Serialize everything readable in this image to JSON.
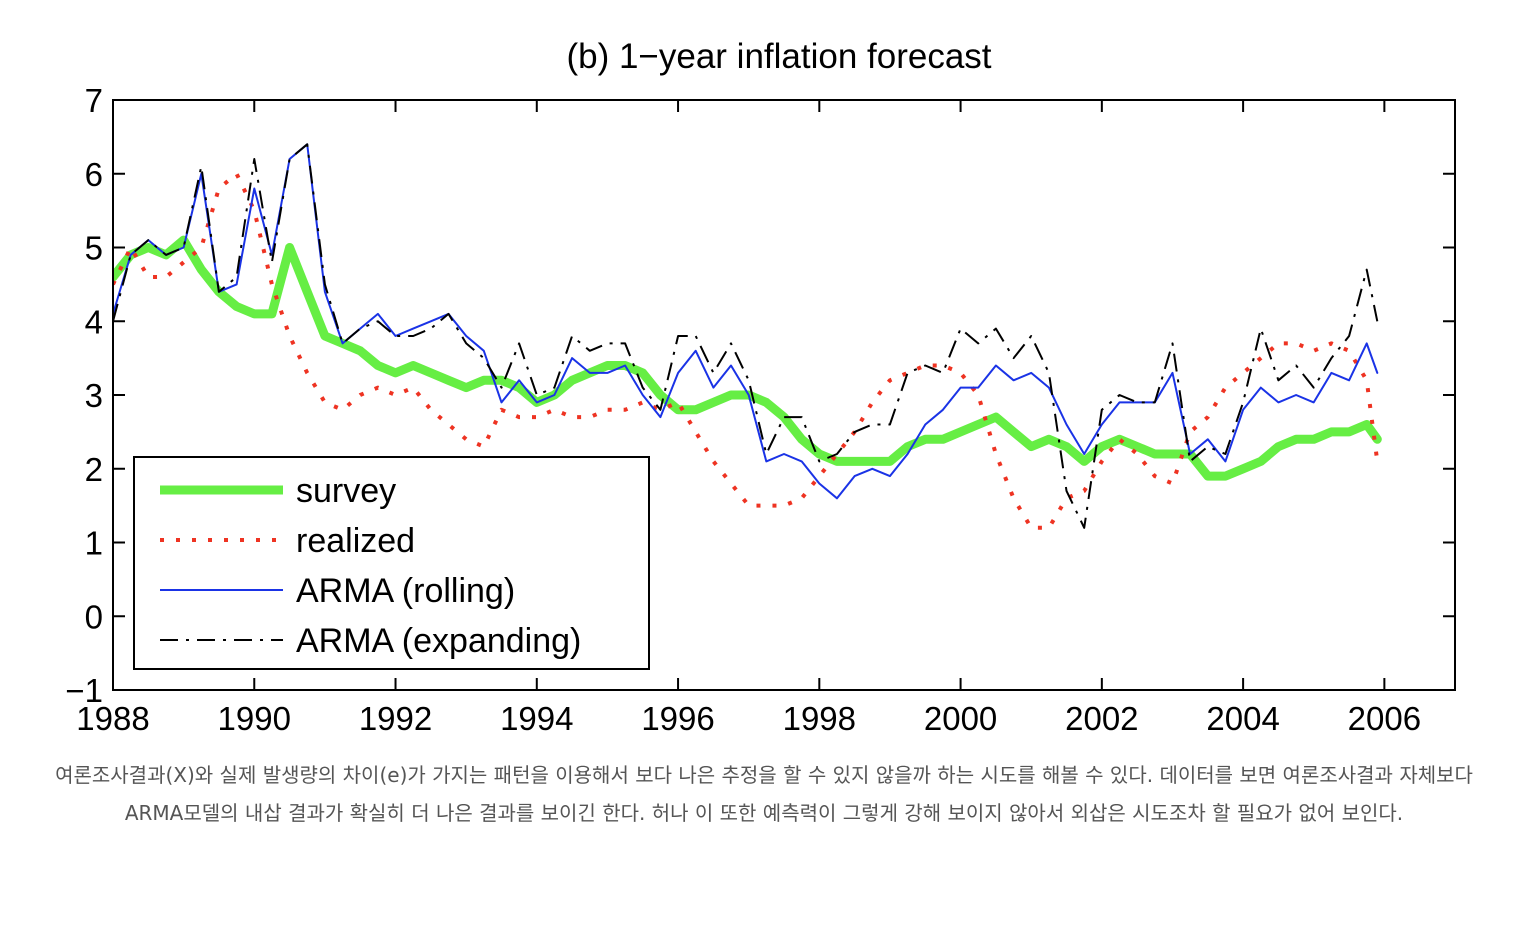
{
  "chart_data": {
    "type": "line",
    "title": "(b) 1−year inflation forecast",
    "xlabel": "",
    "ylabel": "",
    "xlim": [
      1988,
      2007
    ],
    "ylim": [
      -1,
      7
    ],
    "x_ticks": [
      1988,
      1990,
      1992,
      1994,
      1996,
      1998,
      2000,
      2002,
      2004,
      2006
    ],
    "x_tick_labels": [
      "1988",
      "1990",
      "1992",
      "1994",
      "1996",
      "1998",
      "2000",
      "2002",
      "2004",
      "2006"
    ],
    "y_ticks": [
      -1,
      0,
      1,
      2,
      3,
      4,
      5,
      6,
      7
    ],
    "y_tick_labels": [
      "−1",
      "0",
      "1",
      "2",
      "3",
      "4",
      "5",
      "6",
      "7"
    ],
    "grid": false,
    "legend_position": "bottom-left",
    "series": [
      {
        "name": "survey",
        "color": "#66ee44",
        "style": "solid-thick",
        "x": [
          1988.0,
          1988.25,
          1988.5,
          1988.75,
          1989.0,
          1989.25,
          1989.5,
          1989.75,
          1990.0,
          1990.25,
          1990.5,
          1990.75,
          1991.0,
          1991.25,
          1991.5,
          1991.75,
          1992.0,
          1992.25,
          1992.5,
          1992.75,
          1993.0,
          1993.25,
          1993.5,
          1993.75,
          1994.0,
          1994.25,
          1994.5,
          1994.75,
          1995.0,
          1995.25,
          1995.5,
          1995.75,
          1996.0,
          1996.25,
          1996.5,
          1996.75,
          1997.0,
          1997.25,
          1997.5,
          1997.75,
          1998.0,
          1998.25,
          1998.5,
          1998.75,
          1999.0,
          1999.25,
          1999.5,
          1999.75,
          2000.0,
          2000.25,
          2000.5,
          2000.75,
          2001.0,
          2001.25,
          2001.5,
          2001.75,
          2002.0,
          2002.25,
          2002.5,
          2002.75,
          2003.0,
          2003.25,
          2003.5,
          2003.75,
          2004.0,
          2004.25,
          2004.5,
          2004.75,
          2005.0,
          2005.25,
          2005.5,
          2005.75,
          2005.9
        ],
        "y": [
          4.6,
          4.9,
          5.0,
          4.9,
          5.1,
          4.7,
          4.4,
          4.2,
          4.1,
          4.1,
          5.0,
          4.4,
          3.8,
          3.7,
          3.6,
          3.4,
          3.3,
          3.4,
          3.3,
          3.2,
          3.1,
          3.2,
          3.2,
          3.1,
          2.9,
          3.0,
          3.2,
          3.3,
          3.4,
          3.4,
          3.3,
          3.0,
          2.8,
          2.8,
          2.9,
          3.0,
          3.0,
          2.9,
          2.7,
          2.4,
          2.2,
          2.1,
          2.1,
          2.1,
          2.1,
          2.3,
          2.4,
          2.4,
          2.5,
          2.6,
          2.7,
          2.5,
          2.3,
          2.4,
          2.3,
          2.1,
          2.3,
          2.4,
          2.3,
          2.2,
          2.2,
          2.2,
          1.9,
          1.9,
          2.0,
          2.1,
          2.3,
          2.4,
          2.4,
          2.5,
          2.5,
          2.6,
          2.4
        ]
      },
      {
        "name": "realized",
        "color": "#ee3322",
        "style": "dotted",
        "x": [
          1988.0,
          1988.25,
          1988.5,
          1988.75,
          1989.0,
          1989.25,
          1989.5,
          1989.75,
          1990.0,
          1990.25,
          1990.5,
          1990.75,
          1991.0,
          1991.25,
          1991.5,
          1991.75,
          1992.0,
          1992.25,
          1992.5,
          1992.75,
          1993.0,
          1993.25,
          1993.5,
          1993.75,
          1994.0,
          1994.25,
          1994.5,
          1994.75,
          1995.0,
          1995.25,
          1995.5,
          1995.75,
          1996.0,
          1996.25,
          1996.5,
          1996.75,
          1997.0,
          1997.25,
          1997.5,
          1997.75,
          1998.0,
          1998.25,
          1998.5,
          1998.75,
          1999.0,
          1999.25,
          1999.5,
          1999.75,
          2000.0,
          2000.25,
          2000.5,
          2000.75,
          2001.0,
          2001.25,
          2001.5,
          2001.75,
          2002.0,
          2002.25,
          2002.5,
          2002.75,
          2003.0,
          2003.25,
          2003.5,
          2003.75,
          2004.0,
          2004.25,
          2004.5,
          2004.75,
          2005.0,
          2005.25,
          2005.5,
          2005.75,
          2005.9
        ],
        "y": [
          4.5,
          5.0,
          4.6,
          4.6,
          4.8,
          5.0,
          5.8,
          6.0,
          5.5,
          4.5,
          3.8,
          3.3,
          2.9,
          2.8,
          3.0,
          3.1,
          3.0,
          3.1,
          2.8,
          2.6,
          2.4,
          2.3,
          2.8,
          2.7,
          2.7,
          2.8,
          2.7,
          2.7,
          2.8,
          2.8,
          2.9,
          2.8,
          2.9,
          2.5,
          2.1,
          1.8,
          1.5,
          1.5,
          1.5,
          1.6,
          1.9,
          2.2,
          2.5,
          2.9,
          3.2,
          3.3,
          3.4,
          3.4,
          3.3,
          3.0,
          2.2,
          1.6,
          1.2,
          1.2,
          1.6,
          1.7,
          2.1,
          2.4,
          2.2,
          1.9,
          1.8,
          2.5,
          2.7,
          3.1,
          3.3,
          3.5,
          3.7,
          3.7,
          3.6,
          3.7,
          3.6,
          3.2,
          2.1
        ]
      },
      {
        "name": "ARMA (rolling)",
        "color": "#1a33e6",
        "style": "solid",
        "x": [
          1988.0,
          1988.25,
          1988.5,
          1988.75,
          1989.0,
          1989.25,
          1989.5,
          1989.75,
          1990.0,
          1990.25,
          1990.5,
          1990.75,
          1991.0,
          1991.25,
          1991.5,
          1991.75,
          1992.0,
          1992.25,
          1992.5,
          1992.75,
          1993.0,
          1993.25,
          1993.5,
          1993.75,
          1994.0,
          1994.25,
          1994.5,
          1994.75,
          1995.0,
          1995.25,
          1995.5,
          1995.75,
          1996.0,
          1996.25,
          1996.5,
          1996.75,
          1997.0,
          1997.25,
          1997.5,
          1997.75,
          1998.0,
          1998.25,
          1998.5,
          1998.75,
          1999.0,
          1999.25,
          1999.5,
          1999.75,
          2000.0,
          2000.25,
          2000.5,
          2000.75,
          2001.0,
          2001.25,
          2001.5,
          2001.75,
          2002.0,
          2002.25,
          2002.5,
          2002.75,
          2003.0,
          2003.25,
          2003.5,
          2003.75,
          2004.0,
          2004.25,
          2004.5,
          2004.75,
          2005.0,
          2005.25,
          2005.5,
          2005.75,
          2005.9
        ],
        "y": [
          4.1,
          4.9,
          5.1,
          4.9,
          5.0,
          6.0,
          4.4,
          4.5,
          5.8,
          4.9,
          6.2,
          6.4,
          4.4,
          3.7,
          3.9,
          4.1,
          3.8,
          3.9,
          4.0,
          4.1,
          3.8,
          3.6,
          2.9,
          3.2,
          2.9,
          3.0,
          3.5,
          3.3,
          3.3,
          3.4,
          3.0,
          2.7,
          3.3,
          3.6,
          3.1,
          3.4,
          3.0,
          2.1,
          2.2,
          2.1,
          1.8,
          1.6,
          1.9,
          2.0,
          1.9,
          2.2,
          2.6,
          2.8,
          3.1,
          3.1,
          3.4,
          3.2,
          3.3,
          3.1,
          2.6,
          2.2,
          2.6,
          2.9,
          2.9,
          2.9,
          3.3,
          2.2,
          2.4,
          2.1,
          2.8,
          3.1,
          2.9,
          3.0,
          2.9,
          3.3,
          3.2,
          3.7,
          3.3
        ]
      },
      {
        "name": "ARMA (expanding)",
        "color": "#000000",
        "style": "dash-dot",
        "x": [
          1988.0,
          1988.25,
          1988.5,
          1988.75,
          1989.0,
          1989.25,
          1989.5,
          1989.75,
          1990.0,
          1990.25,
          1990.5,
          1990.75,
          1991.0,
          1991.25,
          1991.5,
          1991.75,
          1992.0,
          1992.25,
          1992.5,
          1992.75,
          1993.0,
          1993.25,
          1993.5,
          1993.75,
          1994.0,
          1994.25,
          1994.5,
          1994.75,
          1995.0,
          1995.25,
          1995.5,
          1995.75,
          1996.0,
          1996.25,
          1996.5,
          1996.75,
          1997.0,
          1997.25,
          1997.5,
          1997.75,
          1998.0,
          1998.25,
          1998.5,
          1998.75,
          1999.0,
          1999.25,
          1999.5,
          1999.75,
          2000.0,
          2000.25,
          2000.5,
          2000.75,
          2001.0,
          2001.25,
          2001.5,
          2001.75,
          2002.0,
          2002.25,
          2002.5,
          2002.75,
          2003.0,
          2003.25,
          2003.5,
          2003.75,
          2004.0,
          2004.25,
          2004.5,
          2004.75,
          2005.0,
          2005.25,
          2005.5,
          2005.75,
          2005.9
        ],
        "y": [
          4.0,
          4.9,
          5.1,
          4.9,
          5.0,
          6.1,
          4.4,
          4.6,
          6.2,
          4.8,
          6.2,
          6.4,
          4.5,
          3.7,
          3.9,
          4.0,
          3.8,
          3.8,
          3.9,
          4.1,
          3.7,
          3.5,
          3.1,
          3.7,
          3.0,
          3.1,
          3.8,
          3.6,
          3.7,
          3.7,
          3.1,
          2.8,
          3.8,
          3.8,
          3.3,
          3.7,
          3.2,
          2.2,
          2.7,
          2.7,
          2.1,
          2.2,
          2.5,
          2.6,
          2.6,
          3.3,
          3.4,
          3.3,
          3.9,
          3.7,
          3.9,
          3.5,
          3.8,
          3.3,
          1.7,
          1.2,
          2.8,
          3.0,
          2.9,
          2.9,
          3.7,
          2.1,
          2.3,
          2.2,
          2.9,
          3.9,
          3.2,
          3.4,
          3.1,
          3.5,
          3.8,
          4.7,
          4.0
        ]
      }
    ]
  },
  "caption": {
    "text": "여론조사결과(X)와 실제 발생량의 차이(e)가 가지는 패턴을 이용해서 보다 나은 추정을 할 수 있지 않을까 하는 시도를 해볼 수 있다. 데이터를 보면 여론조사결과 자체보다 ARMA모델의 내삽 결과가 확실히 더 나은 결과를 보이긴 한다. 허나 이 또한 예측력이 그렇게 강해 보이지 않아서 외삽은 시도조차 할 필요가 없어 보인다."
  }
}
